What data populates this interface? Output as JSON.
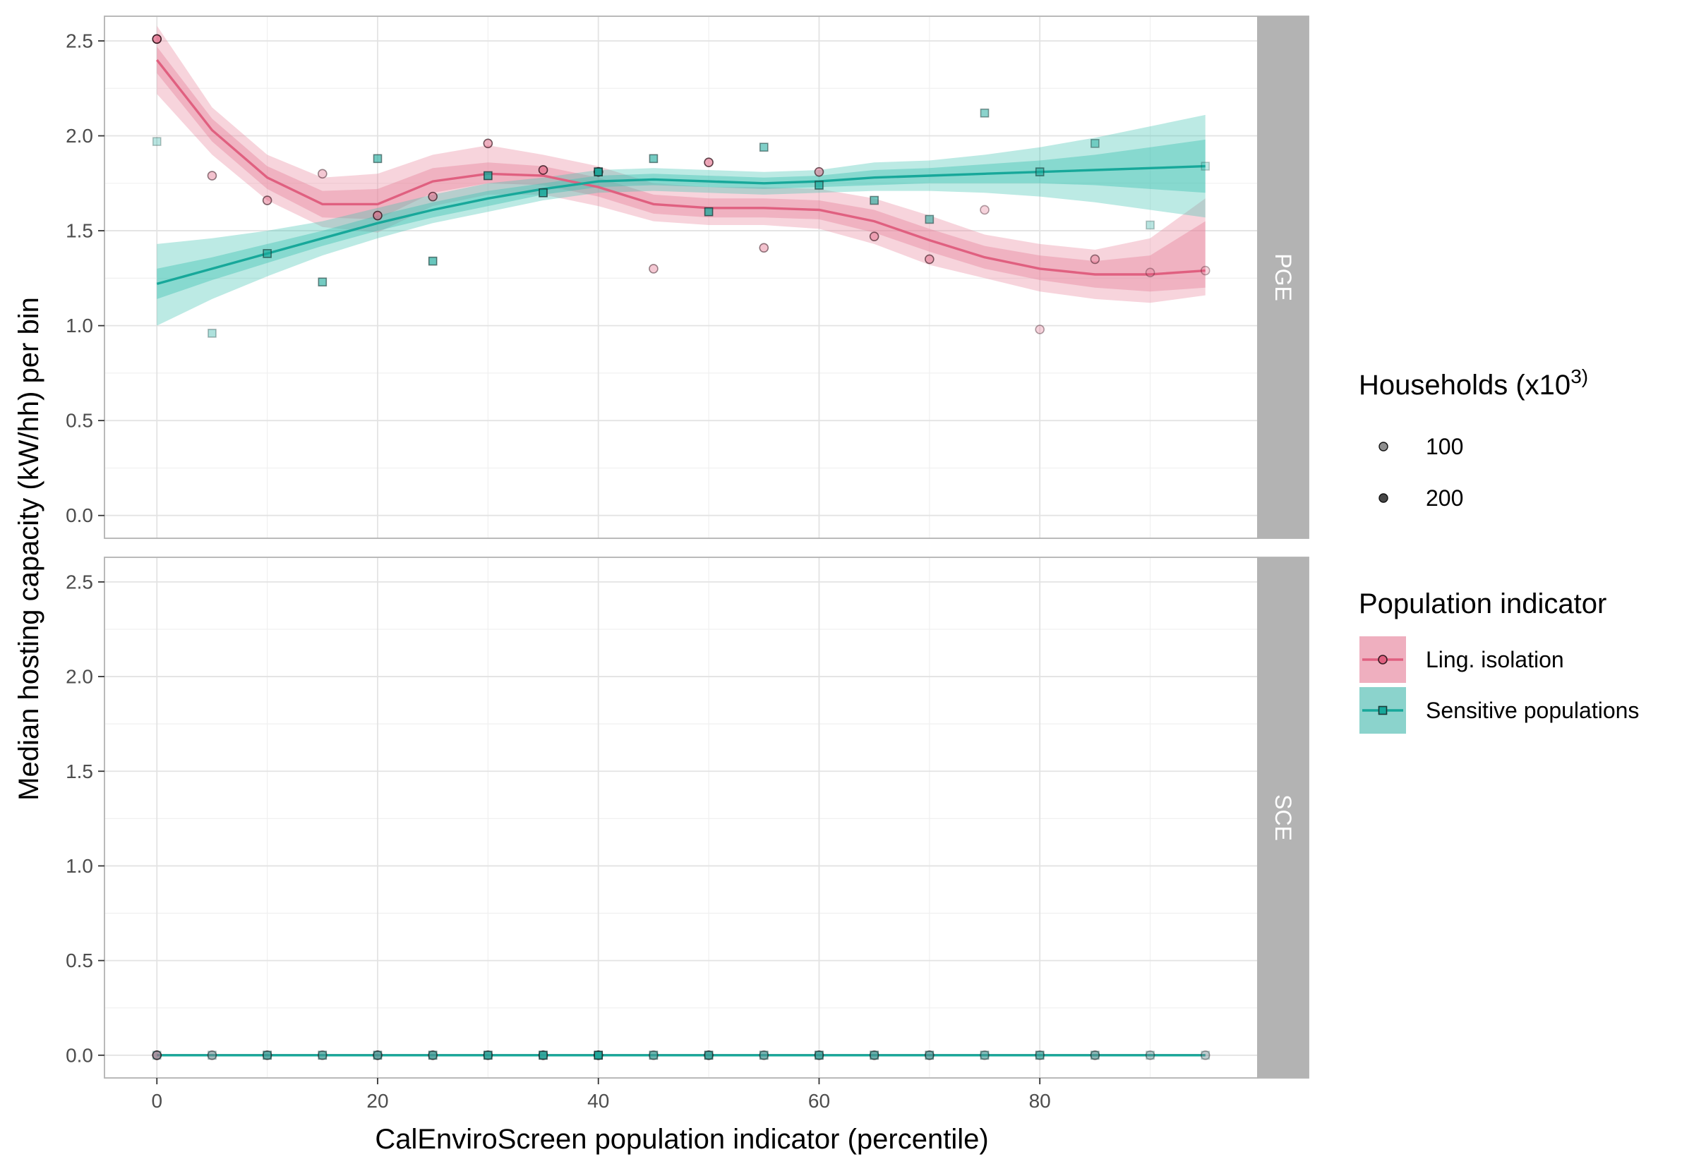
{
  "chart_data": {
    "type": "scatter",
    "xlabel": "CalEnviroScreen population indicator (percentile)",
    "ylabel": "Median hosting capacity (kW/hh) per bin",
    "xlim": [
      -4.75,
      99.75
    ],
    "ylim": [
      -0.12,
      2.63
    ],
    "x_ticks": [
      0,
      20,
      40,
      60,
      80
    ],
    "x_tick_labels": [
      "0",
      "20",
      "40",
      "60",
      "80"
    ],
    "y_ticks": [
      0,
      0.5,
      1,
      1.5,
      2,
      2.5
    ],
    "y_tick_labels": [
      "0.0",
      "0.5",
      "1.0",
      "1.5",
      "2.0",
      "2.5"
    ],
    "grid": true,
    "facets": [
      "PGE",
      "SCE"
    ],
    "x": [
      0,
      5,
      10,
      15,
      20,
      25,
      30,
      35,
      40,
      45,
      50,
      55,
      60,
      65,
      70,
      75,
      80,
      85,
      90,
      95
    ],
    "legends": {
      "size": {
        "title_main": "Households (x10",
        "title_sup": "3)",
        "entries": [
          {
            "label": "100",
            "households": 100
          },
          {
            "label": "200",
            "households": 200
          }
        ]
      },
      "color": {
        "title": "Population indicator",
        "entries": [
          {
            "label": "Ling. isolation",
            "color": "#e06080",
            "shape": "circle"
          },
          {
            "label": "Sensitive populations",
            "color": "#17a89a",
            "shape": "square"
          }
        ]
      }
    },
    "series": [
      {
        "name": "Ling. isolation",
        "color": "#e06080",
        "band_color": "#e8849c",
        "shape": "circle",
        "panels": {
          "PGE": {
            "points": [
              2.51,
              1.79,
              1.66,
              1.8,
              1.58,
              1.68,
              1.96,
              1.82,
              1.81,
              1.3,
              1.86,
              1.41,
              1.81,
              1.47,
              1.35,
              1.61,
              0.98,
              1.35,
              1.28,
              1.29
            ],
            "point_opacity": [
              1.0,
              0.55,
              0.65,
              0.5,
              0.85,
              0.75,
              0.7,
              0.85,
              0.95,
              0.5,
              0.8,
              0.55,
              0.7,
              0.65,
              0.65,
              0.4,
              0.4,
              0.55,
              0.35,
              0.35
            ],
            "fit": [
              2.4,
              2.03,
              1.78,
              1.64,
              1.64,
              1.76,
              1.8,
              1.79,
              1.73,
              1.64,
              1.62,
              1.62,
              1.61,
              1.55,
              1.45,
              1.36,
              1.3,
              1.27,
              1.27,
              1.29
            ],
            "inner_band": [
              [
                2.33,
                2.47
              ],
              [
                1.97,
                2.09
              ],
              [
                1.72,
                1.84
              ],
              [
                1.57,
                1.71
              ],
              [
                1.56,
                1.72
              ],
              [
                1.7,
                1.83
              ],
              [
                1.75,
                1.86
              ],
              [
                1.74,
                1.84
              ],
              [
                1.68,
                1.78
              ],
              [
                1.59,
                1.69
              ],
              [
                1.57,
                1.67
              ],
              [
                1.57,
                1.67
              ],
              [
                1.56,
                1.66
              ],
              [
                1.49,
                1.61
              ],
              [
                1.39,
                1.51
              ],
              [
                1.3,
                1.42
              ],
              [
                1.24,
                1.37
              ],
              [
                1.2,
                1.34
              ],
              [
                1.18,
                1.37
              ],
              [
                1.2,
                1.55
              ]
            ],
            "outer_band": [
              [
                2.22,
                2.58
              ],
              [
                1.9,
                2.15
              ],
              [
                1.66,
                1.9
              ],
              [
                1.52,
                1.78
              ],
              [
                1.49,
                1.8
              ],
              [
                1.63,
                1.9
              ],
              [
                1.69,
                1.95
              ],
              [
                1.69,
                1.9
              ],
              [
                1.63,
                1.84
              ],
              [
                1.55,
                1.75
              ],
              [
                1.53,
                1.73
              ],
              [
                1.53,
                1.73
              ],
              [
                1.51,
                1.72
              ],
              [
                1.43,
                1.67
              ],
              [
                1.32,
                1.58
              ],
              [
                1.25,
                1.48
              ],
              [
                1.18,
                1.43
              ],
              [
                1.14,
                1.4
              ],
              [
                1.12,
                1.46
              ],
              [
                1.16,
                1.67
              ]
            ]
          },
          "SCE": {
            "points": [
              0,
              0,
              0,
              0,
              0,
              0,
              0,
              0,
              0,
              0,
              0,
              0,
              0,
              0,
              0,
              0,
              0,
              0,
              0,
              0
            ],
            "point_opacity": [
              1.0,
              0.55,
              0.65,
              0.5,
              0.85,
              0.75,
              0.7,
              0.85,
              0.95,
              0.5,
              0.8,
              0.55,
              0.7,
              0.65,
              0.65,
              0.4,
              0.4,
              0.55,
              0.35,
              0.35
            ],
            "fit": [
              0,
              0,
              0,
              0,
              0,
              0,
              0,
              0,
              0,
              0,
              0,
              0,
              0,
              0,
              0,
              0,
              0,
              0,
              0,
              0
            ]
          }
        }
      },
      {
        "name": "Sensitive populations",
        "color": "#17a89a",
        "band_color": "#3ec2b3",
        "shape": "square",
        "panels": {
          "PGE": {
            "points": [
              1.97,
              0.96,
              1.38,
              1.23,
              1.88,
              1.34,
              1.79,
              1.7,
              1.81,
              1.88,
              1.6,
              1.94,
              1.74,
              1.66,
              1.56,
              2.12,
              1.81,
              1.96,
              1.53,
              1.84
            ],
            "point_opacity": [
              0.3,
              0.35,
              0.65,
              0.6,
              0.6,
              0.65,
              0.8,
              0.85,
              0.95,
              0.6,
              0.75,
              0.55,
              0.7,
              0.6,
              0.55,
              0.5,
              0.6,
              0.45,
              0.3,
              0.25
            ],
            "fit": [
              1.22,
              1.3,
              1.38,
              1.46,
              1.54,
              1.61,
              1.67,
              1.72,
              1.76,
              1.77,
              1.76,
              1.75,
              1.76,
              1.78,
              1.79,
              1.8,
              1.81,
              1.82,
              1.83,
              1.84
            ],
            "inner_band": [
              [
                1.14,
                1.3
              ],
              [
                1.24,
                1.36
              ],
              [
                1.33,
                1.43
              ],
              [
                1.42,
                1.5
              ],
              [
                1.5,
                1.58
              ],
              [
                1.57,
                1.65
              ],
              [
                1.63,
                1.71
              ],
              [
                1.69,
                1.75
              ],
              [
                1.73,
                1.79
              ],
              [
                1.74,
                1.8
              ],
              [
                1.73,
                1.79
              ],
              [
                1.72,
                1.78
              ],
              [
                1.73,
                1.79
              ],
              [
                1.74,
                1.82
              ],
              [
                1.75,
                1.83
              ],
              [
                1.75,
                1.85
              ],
              [
                1.75,
                1.87
              ],
              [
                1.74,
                1.9
              ],
              [
                1.72,
                1.94
              ],
              [
                1.7,
                1.98
              ]
            ],
            "outer_band": [
              [
                1.0,
                1.43
              ],
              [
                1.14,
                1.46
              ],
              [
                1.26,
                1.5
              ],
              [
                1.37,
                1.55
              ],
              [
                1.46,
                1.62
              ],
              [
                1.54,
                1.69
              ],
              [
                1.6,
                1.75
              ],
              [
                1.66,
                1.78
              ],
              [
                1.7,
                1.82
              ],
              [
                1.71,
                1.83
              ],
              [
                1.7,
                1.82
              ],
              [
                1.69,
                1.81
              ],
              [
                1.7,
                1.82
              ],
              [
                1.71,
                1.86
              ],
              [
                1.71,
                1.87
              ],
              [
                1.7,
                1.9
              ],
              [
                1.68,
                1.94
              ],
              [
                1.65,
                1.99
              ],
              [
                1.61,
                2.05
              ],
              [
                1.57,
                2.11
              ]
            ]
          },
          "SCE": {
            "points": [
              0,
              0,
              0,
              0,
              0,
              0,
              0,
              0,
              0,
              0,
              0,
              0,
              0,
              0,
              0,
              0,
              0,
              0,
              0,
              0
            ],
            "point_opacity": [
              0.3,
              0.35,
              0.65,
              0.6,
              0.6,
              0.65,
              0.8,
              0.85,
              0.95,
              0.6,
              0.75,
              0.55,
              0.7,
              0.6,
              0.55,
              0.5,
              0.6,
              0.45,
              0.3,
              0.25
            ],
            "fit": [
              0,
              0,
              0,
              0,
              0,
              0,
              0,
              0,
              0,
              0,
              0,
              0,
              0,
              0,
              0,
              0,
              0,
              0,
              0,
              0
            ]
          }
        }
      }
    ]
  }
}
